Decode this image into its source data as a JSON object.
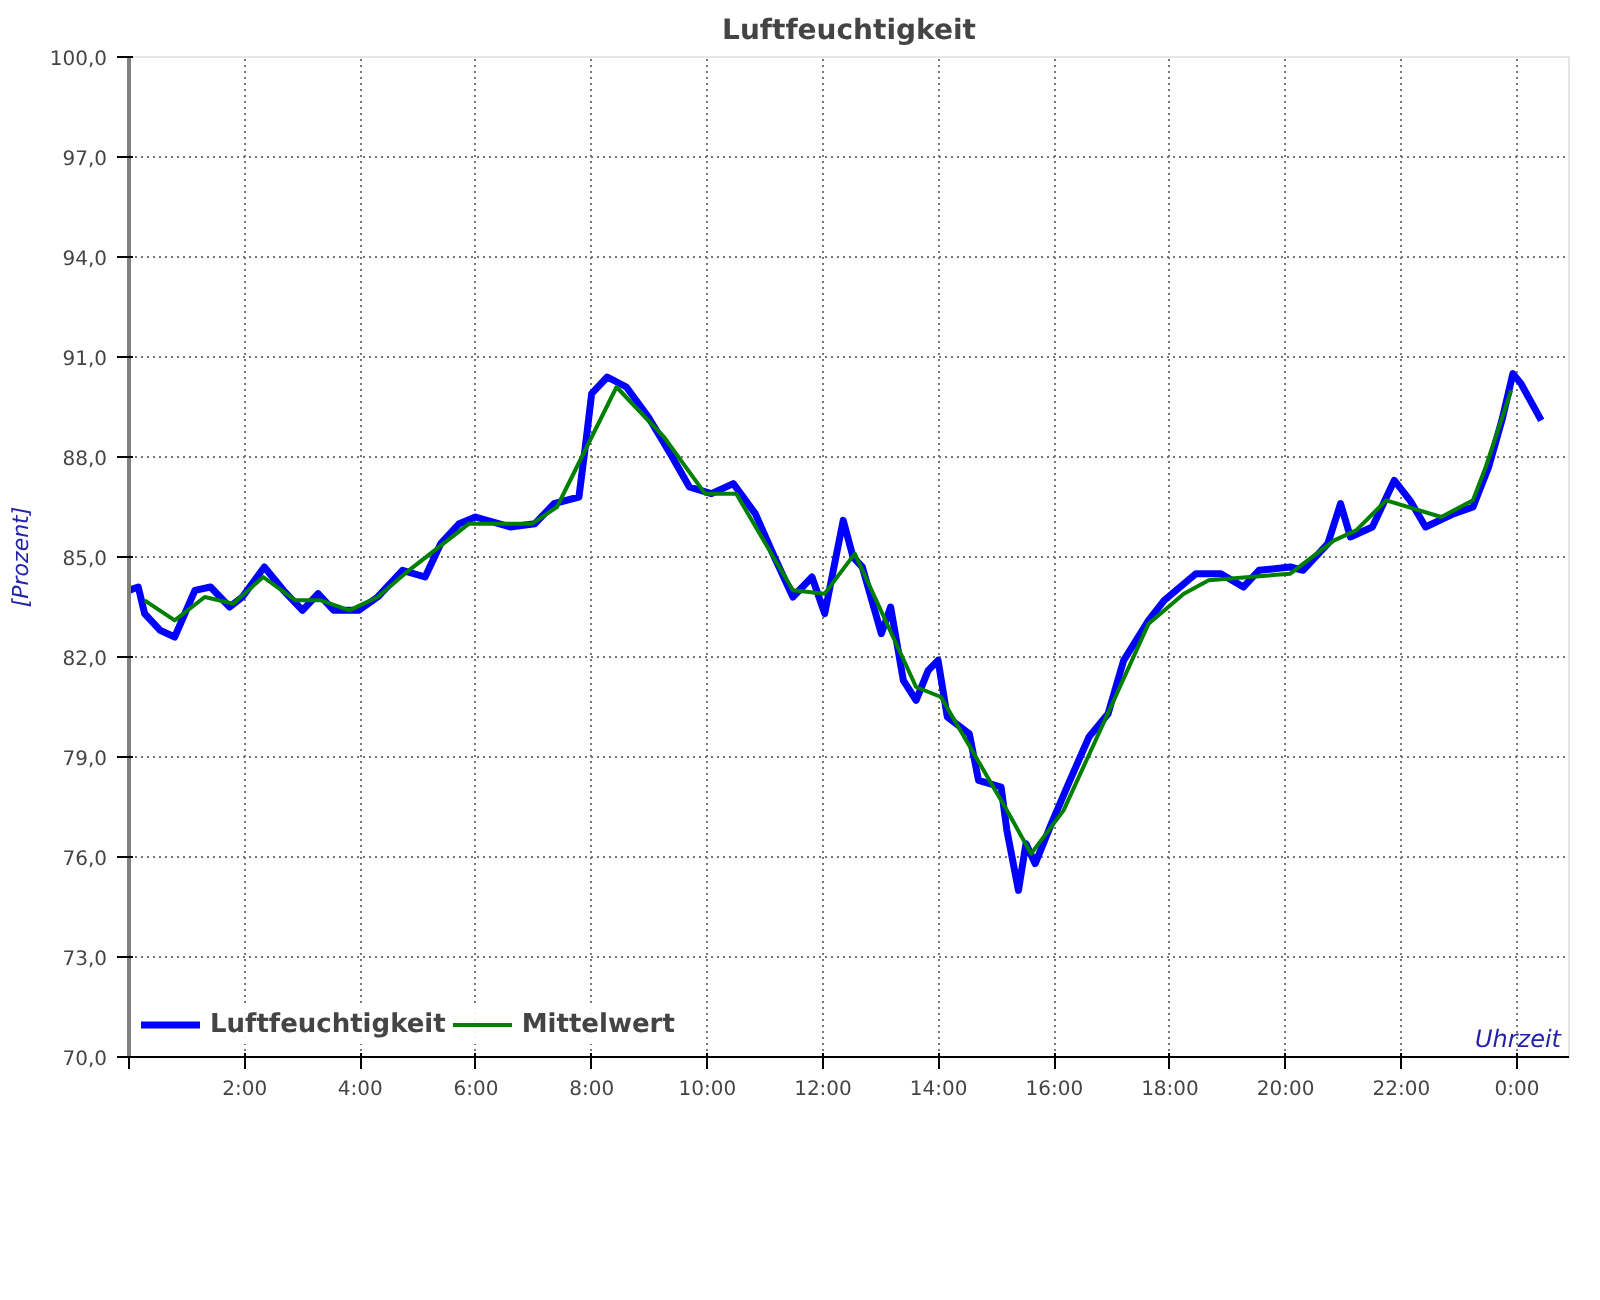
{
  "chart_data": {
    "type": "line",
    "title": "Luftfeuchtigkeit",
    "xlabel": "Uhrzeit",
    "ylabel": "[Prozent]",
    "xlim": [
      0,
      24.9
    ],
    "ylim": [
      70,
      100
    ],
    "xticks": [
      {
        "value": 0,
        "label": null
      },
      {
        "value": 2,
        "label": "2:00"
      },
      {
        "value": 4,
        "label": "4:00"
      },
      {
        "value": 6,
        "label": "6:00"
      },
      {
        "value": 8,
        "label": "8:00"
      },
      {
        "value": 10,
        "label": "10:00"
      },
      {
        "value": 12,
        "label": "12:00"
      },
      {
        "value": 14,
        "label": "14:00"
      },
      {
        "value": 16,
        "label": "16:00"
      },
      {
        "value": 18,
        "label": "18:00"
      },
      {
        "value": 20,
        "label": "20:00"
      },
      {
        "value": 22,
        "label": "22:00"
      },
      {
        "value": 24,
        "label": "0:00"
      }
    ],
    "yticks": [
      {
        "value": 70,
        "label": "70,0"
      },
      {
        "value": 73,
        "label": "73,0"
      },
      {
        "value": 76,
        "label": "76,0"
      },
      {
        "value": 79,
        "label": "79,0"
      },
      {
        "value": 82,
        "label": "82,0"
      },
      {
        "value": 85,
        "label": "85,0"
      },
      {
        "value": 88,
        "label": "88,0"
      },
      {
        "value": 91,
        "label": "91,0"
      },
      {
        "value": 94,
        "label": "94,0"
      },
      {
        "value": 97,
        "label": "97,0"
      },
      {
        "value": 100,
        "label": "100,0"
      }
    ],
    "grid": true,
    "legend": "bottom left",
    "line_style": "solid",
    "series": [
      {
        "name": "Luftfeuchtigkeit",
        "color": "#0000ff",
        "x": [
          0,
          0.16,
          0.27,
          0.54,
          0.79,
          1.14,
          1.41,
          1.74,
          1.96,
          2.34,
          2.67,
          3.0,
          3.27,
          3.54,
          3.97,
          4.3,
          4.73,
          5.12,
          5.39,
          5.71,
          5.99,
          6.59,
          7.02,
          7.35,
          7.78,
          7.89,
          8.0,
          8.27,
          8.6,
          8.98,
          9.36,
          9.69,
          10.07,
          10.45,
          10.83,
          11.16,
          11.48,
          11.81,
          12.03,
          12.35,
          12.52,
          12.68,
          13.01,
          13.17,
          13.39,
          13.61,
          13.82,
          13.99,
          14.15,
          14.53,
          14.69,
          15.08,
          15.18,
          15.38,
          15.51,
          15.67,
          15.95,
          16.27,
          16.6,
          16.93,
          17.2,
          17.63,
          17.9,
          18.45,
          18.88,
          19.27,
          19.54,
          20.08,
          20.3,
          20.73,
          20.95,
          21.12,
          21.5,
          21.88,
          22.15,
          22.42,
          22.91,
          23.24,
          23.51,
          23.74,
          23.93,
          24.07,
          24.42
        ],
        "values": [
          84.0,
          84.1,
          83.3,
          82.8,
          82.6,
          84.0,
          84.1,
          83.5,
          83.8,
          84.7,
          84.0,
          83.4,
          83.9,
          83.4,
          83.4,
          83.8,
          84.6,
          84.4,
          85.4,
          86.0,
          86.2,
          85.9,
          86.0,
          86.6,
          86.8,
          88.3,
          89.9,
          90.4,
          90.1,
          89.2,
          88.1,
          87.1,
          86.9,
          87.2,
          86.3,
          85.0,
          83.8,
          84.4,
          83.3,
          86.1,
          85.0,
          84.7,
          82.7,
          83.5,
          81.3,
          80.7,
          81.6,
          81.9,
          80.2,
          79.7,
          78.3,
          78.1,
          76.8,
          75.0,
          76.4,
          75.8,
          77.0,
          78.3,
          79.6,
          80.3,
          81.9,
          83.1,
          83.7,
          84.5,
          84.5,
          84.1,
          84.6,
          84.7,
          84.6,
          85.4,
          86.6,
          85.6,
          85.9,
          87.3,
          86.7,
          85.9,
          86.3,
          86.5,
          87.7,
          89.1,
          90.5,
          90.2,
          89.1
        ]
      },
      {
        "name": "Mittelwert",
        "color": "#008000",
        "x": [
          0.27,
          0.79,
          1.31,
          1.8,
          2.32,
          2.88,
          3.32,
          3.81,
          4.3,
          4.84,
          5.88,
          6.97,
          7.4,
          8.43,
          9.25,
          9.96,
          10.5,
          11.48,
          12.03,
          12.55,
          13.61,
          14.04,
          15.18,
          15.6,
          16.16,
          16.82,
          17.63,
          18.24,
          18.67,
          20.08,
          20.84,
          21.22,
          21.74,
          22.69,
          23.24,
          23.46,
          23.9
        ],
        "values": [
          83.7,
          83.1,
          83.8,
          83.6,
          84.4,
          83.7,
          83.7,
          83.4,
          83.8,
          84.6,
          86.0,
          86.0,
          86.5,
          90.1,
          88.6,
          86.9,
          86.9,
          84.0,
          83.9,
          85.1,
          81.1,
          80.8,
          77.4,
          76.1,
          77.4,
          79.9,
          83.0,
          83.9,
          84.3,
          84.5,
          85.5,
          85.8,
          86.7,
          86.2,
          86.7,
          87.7,
          90.0
        ]
      }
    ]
  }
}
